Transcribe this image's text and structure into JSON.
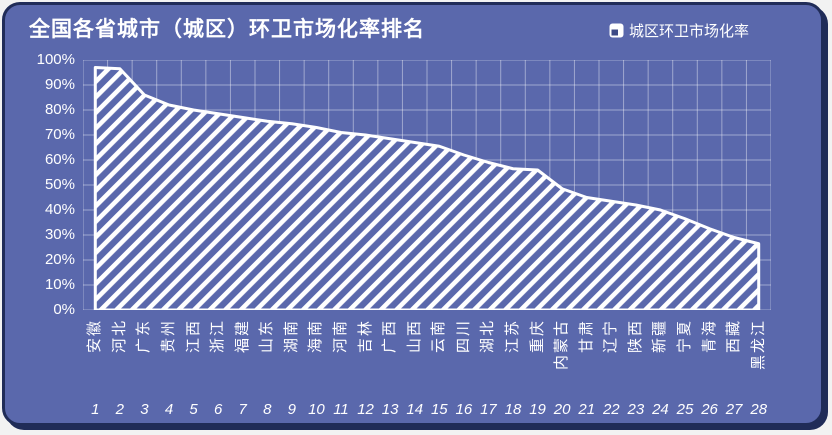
{
  "title": "全国各省城市（城区）环卫市场化率排名",
  "legend": {
    "label": "城区环卫市场化率",
    "icon": "hatched-square"
  },
  "colors": {
    "page_bg": "#F2F2F2",
    "card_bg": "#5A68AC",
    "frame": "#202C58",
    "stripe": "#FFFFFF",
    "grid_line": "rgba(255,255,255,0.42)",
    "text": "#FFFFFF"
  },
  "y_axis": {
    "tick_labels": [
      "100%",
      "90%",
      "80%",
      "70%",
      "60%",
      "50%",
      "40%",
      "30%",
      "20%",
      "10%",
      "0%"
    ]
  },
  "chart_data": {
    "type": "area",
    "title": "全国各省城市（城区）环卫市场化率排名",
    "series_name": "城区环卫市场化率",
    "fill_style": "diagonal-hatch",
    "legend_position": "top-right",
    "grid": true,
    "ylim": [
      0,
      100
    ],
    "y_tick_step": 10,
    "unit": "%",
    "categories": [
      "安徽",
      "河北",
      "广东",
      "贵州",
      "江西",
      "浙江",
      "福建",
      "山东",
      "湖南",
      "海南",
      "河南",
      "吉林",
      "广西",
      "山西",
      "云南",
      "四川",
      "湖北",
      "江苏",
      "重庆",
      "内蒙古",
      "甘肃",
      "辽宁",
      "陕西",
      "新疆",
      "宁夏",
      "青海",
      "西藏",
      "黑龙江"
    ],
    "ranks": [
      1,
      2,
      3,
      4,
      5,
      6,
      7,
      8,
      9,
      10,
      11,
      12,
      13,
      14,
      15,
      16,
      17,
      18,
      19,
      20,
      21,
      22,
      23,
      24,
      25,
      26,
      27,
      28
    ],
    "values": [
      97,
      96.5,
      86,
      82,
      80,
      78.5,
      77,
      75.5,
      74.5,
      73,
      71,
      70,
      68.5,
      67,
      65.5,
      62,
      59,
      56.5,
      56,
      48.5,
      45,
      43.5,
      42,
      40,
      36.5,
      32.5,
      29,
      26.5
    ]
  }
}
